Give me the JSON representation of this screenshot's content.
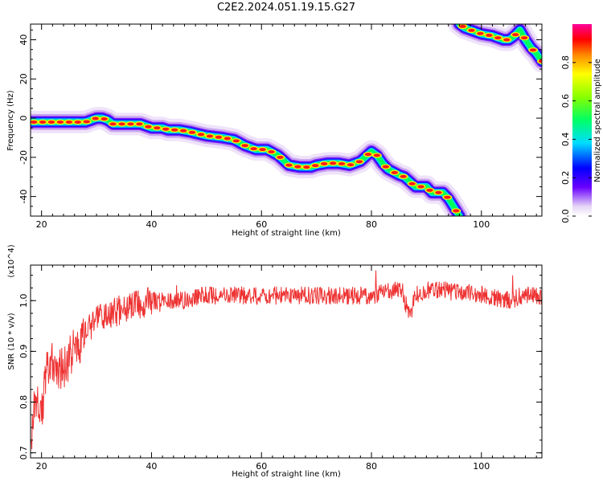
{
  "title": "C2E2.2024.051.19.15.G27",
  "chart_data": [
    {
      "type": "heatmap",
      "xlabel": "Height of straight line (km)",
      "ylabel": "Frequency (Hz)",
      "xlim": [
        18,
        111
      ],
      "ylim": [
        -50,
        48
      ],
      "xticks": [
        20,
        40,
        60,
        80,
        100
      ],
      "yticks": [
        -40,
        -20,
        0,
        20,
        40
      ],
      "grid": false,
      "colorbar": {
        "label": "Normalized spectral amplitude",
        "range": [
          0,
          1
        ],
        "ticks": [
          0.0,
          0.2,
          0.4,
          0.6,
          0.8
        ],
        "tick_labels": [
          "0.0",
          "0.2",
          "0.4",
          "0.6",
          "0.8"
        ]
      },
      "series": [
        {
          "x": [
            18,
            20,
            22,
            25,
            28,
            29,
            30,
            31,
            32,
            33,
            35,
            38,
            40,
            42,
            43,
            45,
            47,
            50,
            53,
            55,
            57,
            59,
            61,
            63,
            65,
            67,
            69,
            70,
            72,
            74,
            76,
            78,
            80,
            81,
            82,
            83,
            85,
            86,
            88,
            90,
            91,
            93,
            94,
            96
          ],
          "y": [
            -2,
            -2,
            -2,
            -2,
            -2,
            -1,
            0,
            0,
            -1,
            -3,
            -3,
            -3,
            -5,
            -5,
            -6,
            -6,
            -7,
            -9,
            -10,
            -11,
            -14,
            -16,
            -16,
            -19,
            -24,
            -25,
            -25,
            -24,
            -23,
            -23,
            -24,
            -22,
            -17,
            -19,
            -23,
            -26,
            -29,
            -30,
            -35,
            -35,
            -38,
            -38,
            -41,
            -50
          ]
        },
        {
          "x": [
            96,
            97,
            98,
            100,
            102,
            104,
            105,
            106,
            107,
            108,
            109,
            110,
            111
          ],
          "y": [
            48,
            46,
            45,
            43,
            42,
            40,
            40,
            42,
            45,
            40,
            36,
            33,
            29
          ]
        }
      ]
    },
    {
      "type": "line",
      "xlabel": "Height of straight line (km)",
      "ylabel": "SNR (10 * v/v)",
      "scale_note": "(x10^4)",
      "xlim": [
        18,
        111
      ],
      "ylim": [
        0.69,
        1.07
      ],
      "xticks": [
        20,
        40,
        60,
        80,
        100
      ],
      "yticks": [
        0.7,
        0.8,
        0.9,
        1.0
      ],
      "grid": false,
      "series": [
        {
          "color": "#ee3333",
          "x": [
            18,
            19,
            20,
            21,
            22,
            23,
            24,
            25,
            26,
            27,
            28,
            30,
            32,
            34,
            36,
            38,
            40,
            45,
            50,
            55,
            60,
            65,
            70,
            75,
            80,
            83,
            85,
            86,
            87,
            88,
            90,
            95,
            100,
            105,
            108,
            111
          ],
          "y": [
            0.74,
            0.8,
            0.78,
            0.86,
            0.88,
            0.87,
            0.86,
            0.89,
            0.9,
            0.92,
            0.94,
            0.96,
            0.97,
            0.98,
            0.99,
            0.99,
            1.0,
            1.0,
            1.01,
            1.01,
            1.01,
            1.01,
            1.01,
            1.01,
            1.01,
            1.02,
            1.02,
            1.0,
            0.97,
            1.01,
            1.02,
            1.02,
            1.01,
            1.0,
            1.01,
            1.01
          ]
        }
      ]
    }
  ]
}
